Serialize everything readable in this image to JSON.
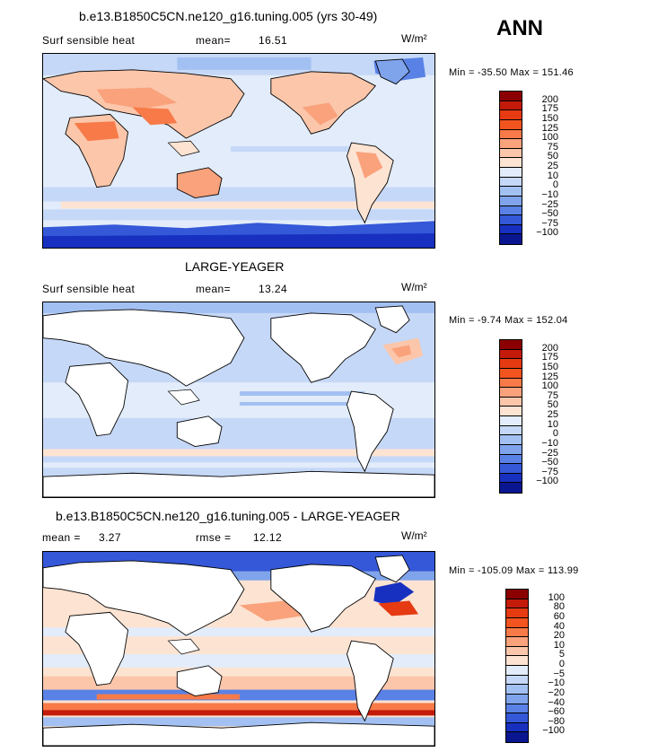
{
  "season": "ANN",
  "panels": [
    {
      "title": "b.e13.B1850C5CN.ne120_g16.tuning.005 (yrs 30-49)",
      "variable": "Surf sensible heat",
      "stat_label": "mean=",
      "stat_value": "16.51",
      "units": "W/m²",
      "minmax": "Min = -35.50 Max = 151.46",
      "levels": [
        "200",
        "175",
        "150",
        "125",
        "100",
        "75",
        "50",
        "25",
        "10",
        "0",
        "−10",
        "−25",
        "−50",
        "−75",
        "−100"
      ],
      "colors": [
        "#8b0000",
        "#c41a0a",
        "#e53a12",
        "#f2541f",
        "#f77a48",
        "#f9a27c",
        "#fbc6aa",
        "#fde3d2",
        "#e2ecfa",
        "#c6d8f7",
        "#a3c0f2",
        "#7fa4ec",
        "#5a82e6",
        "#3458d8",
        "#1730c0",
        "#0a1690"
      ]
    },
    {
      "title": "LARGE-YEAGER",
      "variable": "Surf sensible heat",
      "stat_label": "mean=",
      "stat_value": "13.24",
      "units": "W/m²",
      "minmax": "Min = -9.74 Max = 152.04",
      "levels": [
        "200",
        "175",
        "150",
        "125",
        "100",
        "75",
        "50",
        "25",
        "10",
        "0",
        "−10",
        "−25",
        "−50",
        "−75",
        "−100"
      ],
      "colors": [
        "#8b0000",
        "#c41a0a",
        "#e53a12",
        "#f2541f",
        "#f77a48",
        "#f9a27c",
        "#fbc6aa",
        "#fde3d2",
        "#e2ecfa",
        "#c6d8f7",
        "#a3c0f2",
        "#7fa4ec",
        "#5a82e6",
        "#3458d8",
        "#1730c0",
        "#0a1690"
      ]
    },
    {
      "title": "b.e13.B1850C5CN.ne120_g16.tuning.005 - LARGE-YEAGER",
      "stat_label": "mean =",
      "stat_value": "3.27",
      "stat2_label": "rmse =",
      "stat2_value": "12.12",
      "units": "W/m²",
      "minmax": "Min = -105.09 Max = 113.99",
      "levels": [
        "100",
        "80",
        "60",
        "40",
        "20",
        "10",
        "5",
        "0",
        "−5",
        "−10",
        "−20",
        "−40",
        "−60",
        "−80",
        "−100"
      ],
      "colors": [
        "#8b0000",
        "#c41a0a",
        "#e53a12",
        "#f2541f",
        "#f77a48",
        "#f9a27c",
        "#fbc6aa",
        "#fde3d2",
        "#e2ecfa",
        "#c6d8f7",
        "#a3c0f2",
        "#7fa4ec",
        "#5a82e6",
        "#3458d8",
        "#1730c0",
        "#0a1690"
      ]
    }
  ]
}
